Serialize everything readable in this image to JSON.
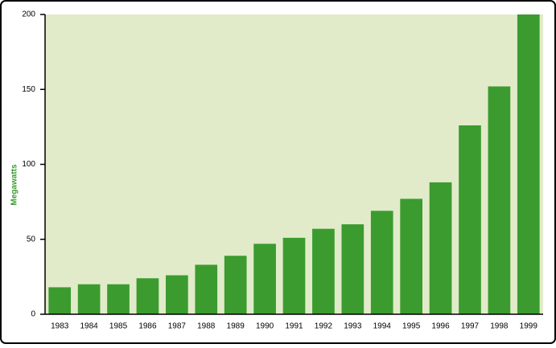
{
  "chart_data": {
    "type": "bar",
    "y_label": "Megawatts",
    "categories": [
      "1983",
      "1984",
      "1985",
      "1986",
      "1987",
      "1988",
      "1989",
      "1990",
      "1991",
      "1992",
      "1993",
      "1994",
      "1995",
      "1996",
      "1997",
      "1998",
      "1999"
    ],
    "values": [
      18,
      20,
      20,
      24,
      26,
      33,
      39,
      47,
      51,
      57,
      60,
      69,
      77,
      88,
      126,
      152,
      200
    ],
    "color": "#3b9b2f",
    "plot_background": "#e1ebc9",
    "ylim": [
      0,
      200
    ],
    "yticks": [
      0,
      50,
      100,
      150,
      200
    ]
  }
}
